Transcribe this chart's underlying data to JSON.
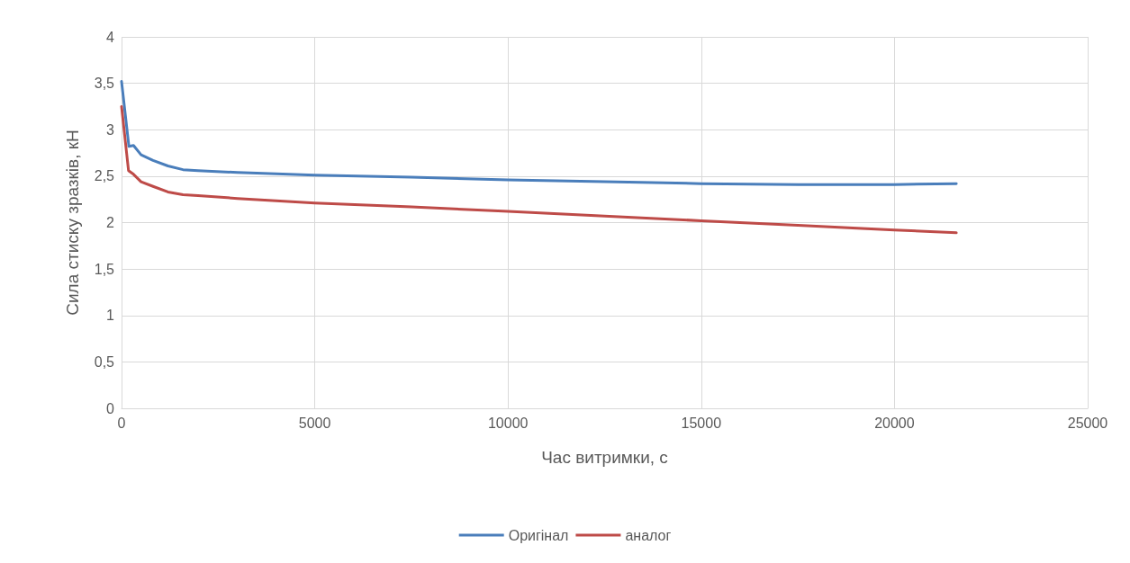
{
  "chart_data": {
    "type": "line",
    "xlabel": "Час витримки, с",
    "ylabel": "Сила стиску зразків, кН",
    "series": [
      {
        "name": "Оригінал",
        "color": "#4a7ebb",
        "x": [
          0,
          190,
          310,
          505,
          815,
          1200,
          1590,
          1980,
          3000,
          5000,
          7500,
          10000,
          12500,
          15000,
          17500,
          20000,
          21600
        ],
        "values": [
          3.52,
          2.82,
          2.83,
          2.73,
          2.67,
          2.61,
          2.57,
          2.56,
          2.54,
          2.51,
          2.49,
          2.46,
          2.44,
          2.42,
          2.41,
          2.41,
          2.42
        ]
      },
      {
        "name": "аналог",
        "color": "#be4b48",
        "x": [
          0,
          180,
          310,
          505,
          815,
          1200,
          1590,
          1980,
          3000,
          5000,
          7500,
          10000,
          12500,
          15000,
          17500,
          20000,
          21600
        ],
        "values": [
          3.25,
          2.56,
          2.52,
          2.44,
          2.39,
          2.33,
          2.3,
          2.29,
          2.26,
          2.21,
          2.17,
          2.12,
          2.07,
          2.02,
          1.97,
          1.92,
          1.89
        ]
      }
    ],
    "xlim": [
      0,
      25000
    ],
    "xticks": [
      0,
      5000,
      10000,
      15000,
      20000,
      25000
    ],
    "ylim": [
      0,
      4
    ],
    "yticks": [
      {
        "value": 0,
        "label": "0"
      },
      {
        "value": 0.5,
        "label": "0,5"
      },
      {
        "value": 1,
        "label": "1"
      },
      {
        "value": 1.5,
        "label": "1,5"
      },
      {
        "value": 2,
        "label": "2"
      },
      {
        "value": 2.5,
        "label": "2,5"
      },
      {
        "value": 3,
        "label": "3"
      },
      {
        "value": 3.5,
        "label": "3,5"
      },
      {
        "value": 4,
        "label": "4"
      }
    ],
    "grid": true,
    "legend": "bottom",
    "marker": "none",
    "line_style": "solid"
  }
}
